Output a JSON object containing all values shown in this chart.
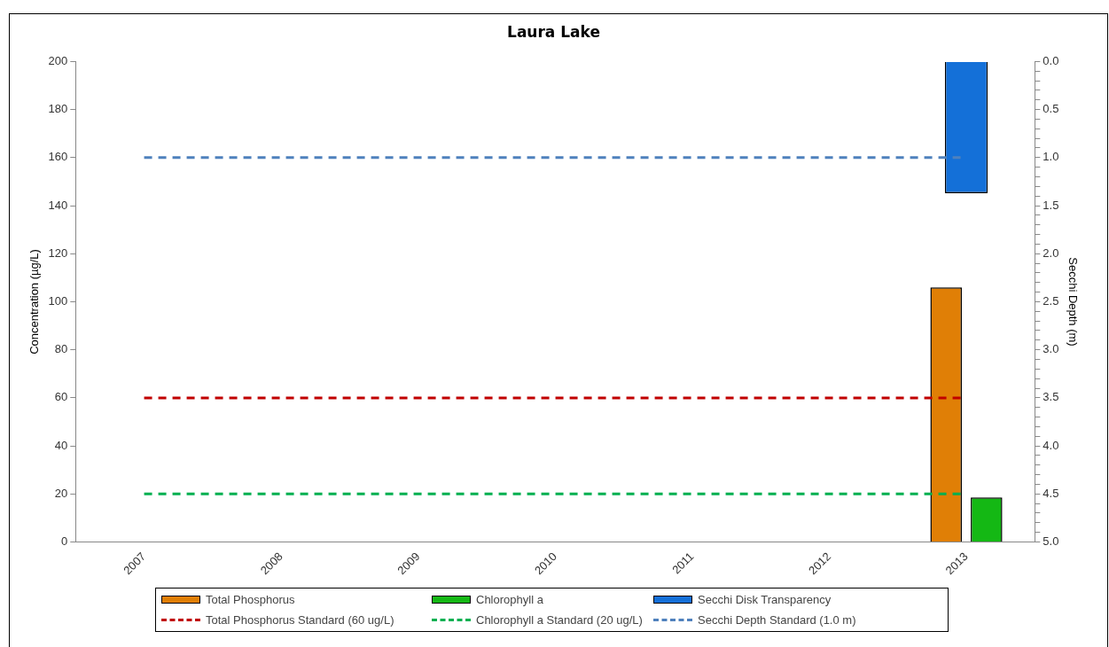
{
  "chart_data": {
    "type": "bar",
    "title": "Laura Lake",
    "ylabel": "Concentration (µg/L)",
    "y2label": "Secchi Depth (m)",
    "categories": [
      "2007",
      "2008",
      "2009",
      "2010",
      "2011",
      "2012",
      "2013"
    ],
    "series": [
      {
        "name": "Total Phosphorus",
        "color": "#e07f06",
        "values": [
          null,
          null,
          null,
          null,
          null,
          null,
          106
        ]
      },
      {
        "name": "Chlorophyll a",
        "color": "#14b814",
        "values": [
          null,
          null,
          null,
          null,
          null,
          null,
          18.5
        ]
      },
      {
        "name": "Secchi Disk Transparency",
        "color": "#1470d8",
        "axis": "y2",
        "values": [
          null,
          null,
          null,
          null,
          null,
          null,
          1.37
        ]
      }
    ],
    "ref_lines": [
      {
        "axis": "y",
        "value": 60,
        "label": "Total Phosphorus Standard (60 ug/L)",
        "color": "#c00000",
        "line_style": "dashed"
      },
      {
        "axis": "y",
        "value": 20,
        "label": "Chlorophyll a Standard (20 ug/L)",
        "color": "#00b050",
        "line_style": "dashed"
      },
      {
        "axis": "y2",
        "value": 1.0,
        "label": "Secchi Depth Standard (1.0 m)",
        "color": "#4f81bd",
        "line_style": "dashed"
      }
    ],
    "ylim": [
      0,
      200
    ],
    "yticks": [
      0,
      20,
      40,
      60,
      80,
      100,
      120,
      140,
      160,
      180,
      200
    ],
    "y2lim": [
      5,
      0
    ],
    "y2ticks": [
      {
        "value": 0,
        "label": "0.0"
      },
      {
        "value": 0.1,
        "label": null
      },
      {
        "value": 0.2,
        "label": null
      },
      {
        "value": 0.3,
        "label": null
      },
      {
        "value": 0.4,
        "label": null
      },
      {
        "value": 0.5,
        "label": "0.5"
      },
      {
        "value": 0.6,
        "label": null
      },
      {
        "value": 0.7,
        "label": null
      },
      {
        "value": 0.8,
        "label": null
      },
      {
        "value": 0.9,
        "label": null
      },
      {
        "value": 1,
        "label": "1.0"
      },
      {
        "value": 1.1,
        "label": null
      },
      {
        "value": 1.2,
        "label": null
      },
      {
        "value": 1.3,
        "label": null
      },
      {
        "value": 1.4,
        "label": null
      },
      {
        "value": 1.5,
        "label": "1.5"
      },
      {
        "value": 1.6,
        "label": null
      },
      {
        "value": 1.7,
        "label": null
      },
      {
        "value": 1.8,
        "label": null
      },
      {
        "value": 1.9,
        "label": null
      },
      {
        "value": 2,
        "label": "2.0"
      },
      {
        "value": 2.1,
        "label": null
      },
      {
        "value": 2.2,
        "label": null
      },
      {
        "value": 2.3,
        "label": null
      },
      {
        "value": 2.4,
        "label": null
      },
      {
        "value": 2.5,
        "label": "2.5"
      },
      {
        "value": 2.6,
        "label": null
      },
      {
        "value": 2.7,
        "label": null
      },
      {
        "value": 2.8,
        "label": null
      },
      {
        "value": 2.9,
        "label": null
      },
      {
        "value": 3,
        "label": "3.0"
      },
      {
        "value": 3.1,
        "label": null
      },
      {
        "value": 3.2,
        "label": null
      },
      {
        "value": 3.3,
        "label": null
      },
      {
        "value": 3.4,
        "label": null
      },
      {
        "value": 3.5,
        "label": "3.5"
      },
      {
        "value": 3.6,
        "label": null
      },
      {
        "value": 3.7,
        "label": null
      },
      {
        "value": 3.8,
        "label": null
      },
      {
        "value": 3.9,
        "label": null
      },
      {
        "value": 4,
        "label": "4.0"
      },
      {
        "value": 4.1,
        "label": null
      },
      {
        "value": 4.2,
        "label": null
      },
      {
        "value": 4.3,
        "label": null
      },
      {
        "value": 4.4,
        "label": null
      },
      {
        "value": 4.5,
        "label": "4.5"
      },
      {
        "value": 4.6,
        "label": null
      },
      {
        "value": 4.7,
        "label": null
      },
      {
        "value": 4.8,
        "label": null
      },
      {
        "value": 4.9,
        "label": null
      },
      {
        "value": 5,
        "label": "5.0"
      }
    ],
    "grid": false,
    "legend": "bottom"
  }
}
